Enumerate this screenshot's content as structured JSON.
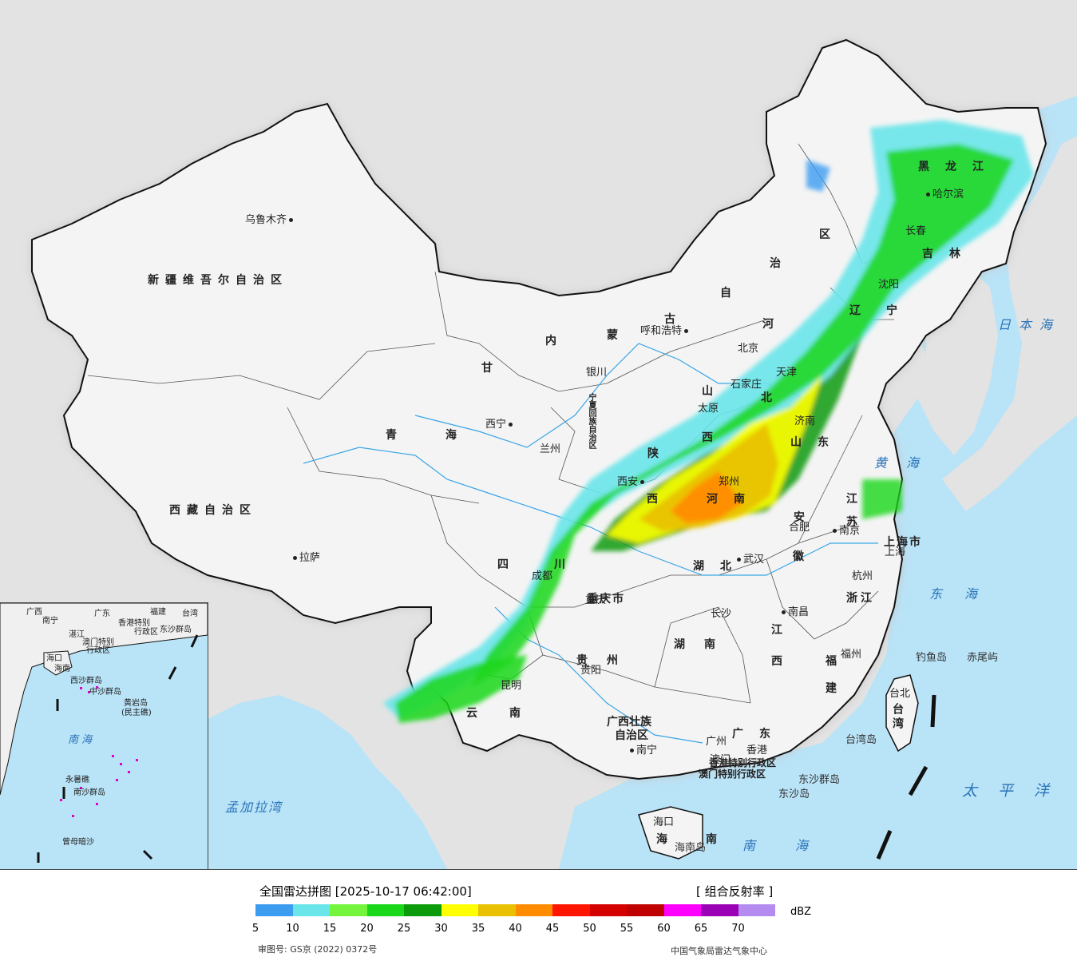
{
  "map": {
    "labels": {
      "provinces": {
        "xinjiang": "新疆维吾尔自治区",
        "xizang": "西藏自治区",
        "qinghai_a": "青",
        "qinghai_b": "海",
        "gansu": "甘",
        "neimeng_1": "内",
        "neimeng_2": "蒙",
        "neimeng_3": "古",
        "neimeng_4": "自",
        "neimeng_5": "治",
        "neimeng_6": "区",
        "heilongjiang": "黑龙江",
        "jilin": "吉林",
        "liaoning_1": "辽",
        "liaoning_2": "宁",
        "hebei_1": "河",
        "hebei_2": "北",
        "shanxi_1": "山",
        "shanxi_2": "西",
        "shandong": "山东",
        "henan": "河南",
        "shaanxi_1": "陕",
        "shaanxi_2": "西",
        "sichuan_1": "四",
        "sichuan_2": "川",
        "hubei": "湖北",
        "anhui_1": "安",
        "anhui_2": "徽",
        "jiangsu_1": "江",
        "jiangsu_2": "苏",
        "zhejiang": "浙江",
        "jiangxi_1": "江",
        "jiangxi_2": "西",
        "hunan": "湖南",
        "guizhou": "贵州",
        "yunnan_1": "云",
        "yunnan_2": "南",
        "fujian_1": "福",
        "fujian_2": "建",
        "guangxi_1": "广西壮族",
        "guangxi_2": "自治区",
        "guangdong": "广东",
        "hainan_1": "海",
        "hainan_2": "南",
        "chongqing": "重庆市",
        "shanghai": "上海市",
        "tianjin": "天津",
        "taiwan": "台湾",
        "ningxia": "宁夏回族自治区",
        "beijing": "北京",
        "hk_sar": "香港特别行政区",
        "macau_sar": "澳门特别行政区"
      },
      "cities": {
        "urumqi": "乌鲁木齐",
        "lhasa": "拉萨",
        "xining": "西宁",
        "lanzhou": "兰州",
        "yinchuan": "银川",
        "hohhot": "呼和浩特",
        "taiyuan": "太原",
        "shijiazhuang": "石家庄",
        "jinan": "济南",
        "zhengzhou": "郑州",
        "xian": "西安",
        "chengdu": "成都",
        "chongqing": "重庆",
        "wuhan": "武汉",
        "hefei": "合肥",
        "nanjing": "南京",
        "shanghai": "上海",
        "hangzhou": "杭州",
        "changsha": "长沙",
        "nanchang": "南昌",
        "fuzhou": "福州",
        "guiyang": "贵阳",
        "kunming": "昆明",
        "nanning": "南宁",
        "guangzhou": "广州",
        "macau": "澳门",
        "hongkong": "香港",
        "haikou": "海口",
        "taibei": "台北",
        "shenyang": "沈阳",
        "changchun": "长春",
        "harbin": "哈尔滨"
      },
      "islands": {
        "diaoyu": "钓鱼岛",
        "chiwei": "赤尾屿",
        "taiwan_dao": "台湾岛",
        "dongsha": "东沙群岛",
        "dongsha_dao": "东沙岛",
        "hainan_dao": "海南岛"
      },
      "seas": {
        "japan_sea": "日本海",
        "yellow_sea": "黄海",
        "east_sea": "东海",
        "pacific": "太平洋",
        "south_sea": "南海",
        "bengal": "孟加拉湾"
      }
    },
    "inset": {
      "guangxi": "广西",
      "guangdong": "广东",
      "fujian": "福建",
      "taiwan": "台湾",
      "hk": "香港特别",
      "hk2": "行政区",
      "macau": "澳门特别",
      "macau2": "行政区",
      "dongsha": "东沙群岛",
      "hainan": "海南",
      "haikou": "海口",
      "xisha": "西沙群岛",
      "zhongsha": "中沙群岛",
      "huangyan": "黄岩岛",
      "huangyan2": "(民主礁)",
      "nanhai": "南 海",
      "yongshu": "永暑礁",
      "nansha": "南沙群岛",
      "zengmu": "曾母暗沙",
      "nanning": "南宁",
      "zhanjiang": "湛江"
    }
  },
  "legend": {
    "title": "全国雷达拼图 [2025-10-17 06:42:00]",
    "product": "[ 组合反射率 ]",
    "unit": "dBZ",
    "colors": [
      "#3c9cf0",
      "#6ae6ea",
      "#74f43c",
      "#1ad71a",
      "#0b9b0b",
      "#ffff00",
      "#e9c100",
      "#ff8c00",
      "#ff1500",
      "#d40000",
      "#c00000",
      "#ff00ff",
      "#9a00b4",
      "#b48cf0"
    ],
    "ticks": [
      "5",
      "10",
      "15",
      "20",
      "25",
      "30",
      "35",
      "40",
      "45",
      "50",
      "55",
      "60",
      "65",
      "70"
    ],
    "approval": "审图号: GS京 (2022) 0372号",
    "agency": "中国气象局雷达气象中心"
  }
}
